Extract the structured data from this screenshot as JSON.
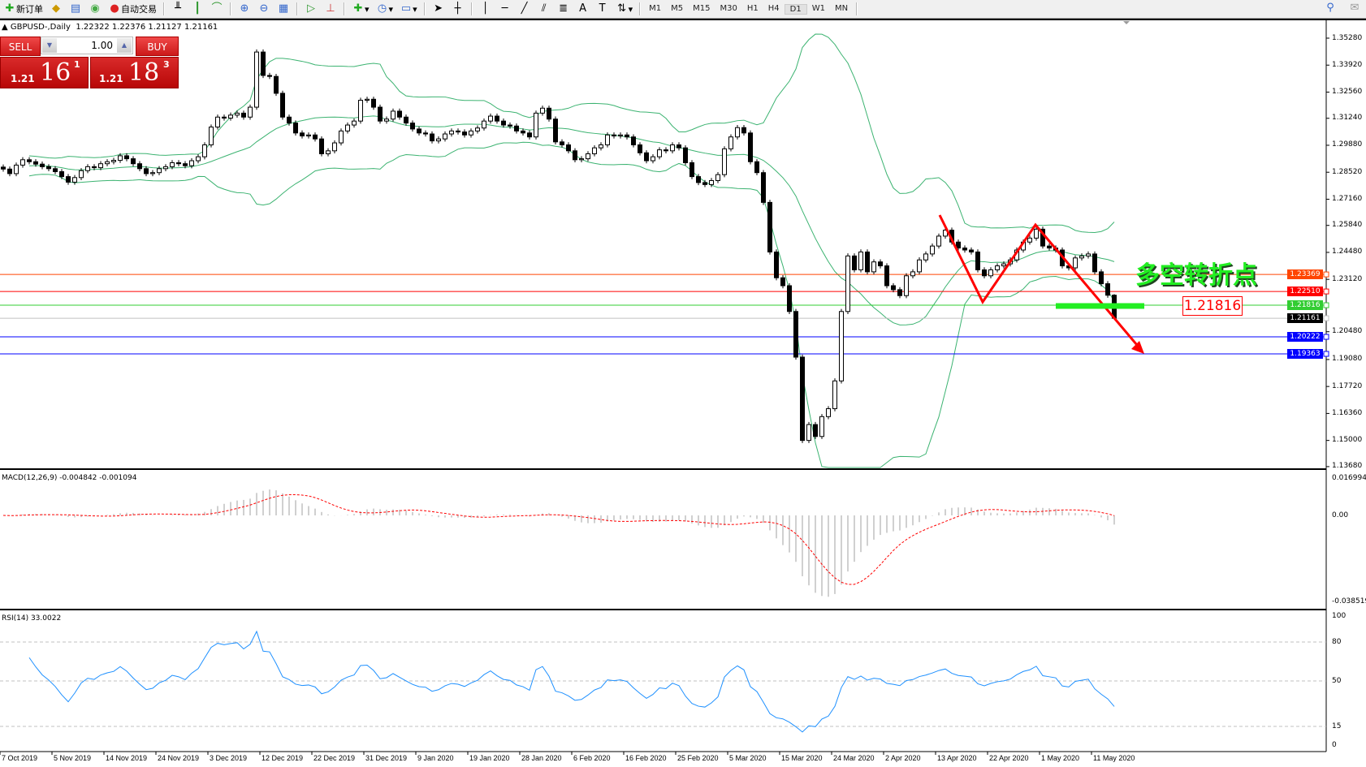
{
  "toolbar": {
    "new_order": "新订单",
    "auto_trading": "自动交易",
    "timeframes": [
      "M1",
      "M5",
      "M15",
      "M30",
      "H1",
      "H4",
      "D1",
      "W1",
      "MN"
    ],
    "active_timeframe": "D1"
  },
  "chart": {
    "title": "GBPUSD-,Daily",
    "ohlc": "1.22322 1.22376 1.21127 1.21161",
    "last_bar": {
      "open": 1.22322,
      "high": 1.22376,
      "low": 1.21127,
      "close": 1.21161
    }
  },
  "trade_panel": {
    "sell_label": "SELL",
    "buy_label": "BUY",
    "lot": "1.00",
    "sell_prefix": "1.21",
    "sell_big": "16",
    "sell_sup": "1",
    "buy_prefix": "1.21",
    "buy_big": "18",
    "buy_sup": "3"
  },
  "chart_data": {
    "type": "candlestick",
    "symbol": "GBPUSD-",
    "period": "Daily",
    "closes": [
      1.2868,
      1.2845,
      1.2888,
      1.2915,
      1.2905,
      1.2893,
      1.288,
      1.287,
      1.2855,
      1.283,
      1.2802,
      1.2825,
      1.286,
      1.288,
      1.2875,
      1.2895,
      1.2905,
      1.2912,
      1.2935,
      1.292,
      1.2895,
      1.287,
      1.2845,
      1.285,
      1.287,
      1.288,
      1.29,
      1.2895,
      1.2885,
      1.291,
      1.293,
      1.299,
      1.308,
      1.313,
      1.3125,
      1.314,
      1.315,
      1.313,
      1.318,
      1.3458,
      1.334,
      1.3335,
      1.325,
      1.313,
      1.31,
      1.305,
      1.3035,
      1.304,
      1.302,
      1.2945,
      1.296,
      1.3,
      1.306,
      1.309,
      1.311,
      1.3215,
      1.322,
      1.318,
      1.311,
      1.312,
      1.316,
      1.313,
      1.31,
      1.307,
      1.305,
      1.3045,
      1.301,
      1.302,
      1.3045,
      1.306,
      1.3055,
      1.304,
      1.306,
      1.3075,
      1.311,
      1.3135,
      1.311,
      1.309,
      1.3085,
      1.306,
      1.305,
      1.303,
      1.315,
      1.3175,
      1.312,
      1.3005,
      1.299,
      1.296,
      1.2915,
      1.292,
      1.2945,
      1.2975,
      1.299,
      1.304,
      1.3035,
      1.304,
      1.303,
      1.299,
      1.295,
      1.291,
      1.293,
      1.2965,
      1.296,
      1.299,
      1.2975,
      1.29,
      1.283,
      1.28,
      1.279,
      1.281,
      1.284,
      1.297,
      1.303,
      1.3077,
      1.305,
      1.2905,
      1.285,
      1.27,
      1.245,
      1.232,
      1.228,
      1.215,
      1.192,
      1.15,
      1.158,
      1.152,
      1.162,
      1.166,
      1.18,
      1.215,
      1.243,
      1.236,
      1.245,
      1.235,
      1.24,
      1.238,
      1.228,
      1.226,
      1.223,
      1.233,
      1.235,
      1.241,
      1.244,
      1.248,
      1.253,
      1.256,
      1.25,
      1.247,
      1.246,
      1.245,
      1.236,
      1.233,
      1.236,
      1.238,
      1.239,
      1.241,
      1.246,
      1.25,
      1.252,
      1.2565,
      1.248,
      1.247,
      1.246,
      1.238,
      1.237,
      1.242,
      1.243,
      1.244,
      1.235,
      1.229,
      1.2232,
      1.21161
    ],
    "bollinger": {
      "period": 20,
      "deviation": 2,
      "color": "#3cb371"
    },
    "price_axis": [
      "1.35280",
      "1.33920",
      "1.32560",
      "1.31240",
      "1.29880",
      "1.28520",
      "1.27160",
      "1.25840",
      "1.24480",
      "1.23120",
      "1.20480",
      "1.19080",
      "1.17720",
      "1.16360",
      "1.15000",
      "1.13680"
    ],
    "price_range": [
      1.1368,
      1.3528
    ],
    "time_axis": [
      "7 Oct 2019",
      "5 Nov 2019",
      "14 Nov 2019",
      "24 Nov 2019",
      "3 Dec 2019",
      "12 Dec 2019",
      "22 Dec 2019",
      "31 Dec 2019",
      "9 Jan 2020",
      "19 Jan 2020",
      "28 Jan 2020",
      "6 Feb 2020",
      "16 Feb 2020",
      "25 Feb 2020",
      "5 Mar 2020",
      "15 Mar 2020",
      "24 Mar 2020",
      "2 Apr 2020",
      "13 Apr 2020",
      "22 Apr 2020",
      "1 May 2020",
      "11 May 2020"
    ],
    "horizontal_lines": [
      {
        "price": 1.23369,
        "label": "1.23369",
        "color": "#ff4500"
      },
      {
        "price": 1.2251,
        "label": "1.22510",
        "color": "#ff0000"
      },
      {
        "price": 1.21816,
        "label": "1.21816",
        "color": "#32cd32"
      },
      {
        "price": 1.21161,
        "label": "1.21161",
        "color": "#c0c0c0",
        "label_bg": "#000000"
      },
      {
        "price": 1.20222,
        "label": "1.20222",
        "color": "#0000ff"
      },
      {
        "price": 1.19363,
        "label": "1.19363",
        "color": "#0000ff"
      }
    ],
    "macd": {
      "label": "MACD(12,26,9) -0.004842 -0.001094",
      "axis": [
        "0.016994",
        "0.00",
        "-0.038519"
      ],
      "range": [
        -0.038519,
        0.016994
      ],
      "signal_color": "#ff0000",
      "hist_color": "#c0c0c0"
    },
    "rsi": {
      "label": "RSI(14) 33.0022",
      "axis": [
        "100",
        "80",
        "50",
        "15",
        "0"
      ],
      "levels": [
        80,
        50,
        15
      ],
      "color": "#1e90ff"
    },
    "annotations": {
      "text": "多空转折点",
      "price_box": "1.21816",
      "arrow_color": "#ff0000",
      "bar_color": "#22ee22"
    }
  }
}
